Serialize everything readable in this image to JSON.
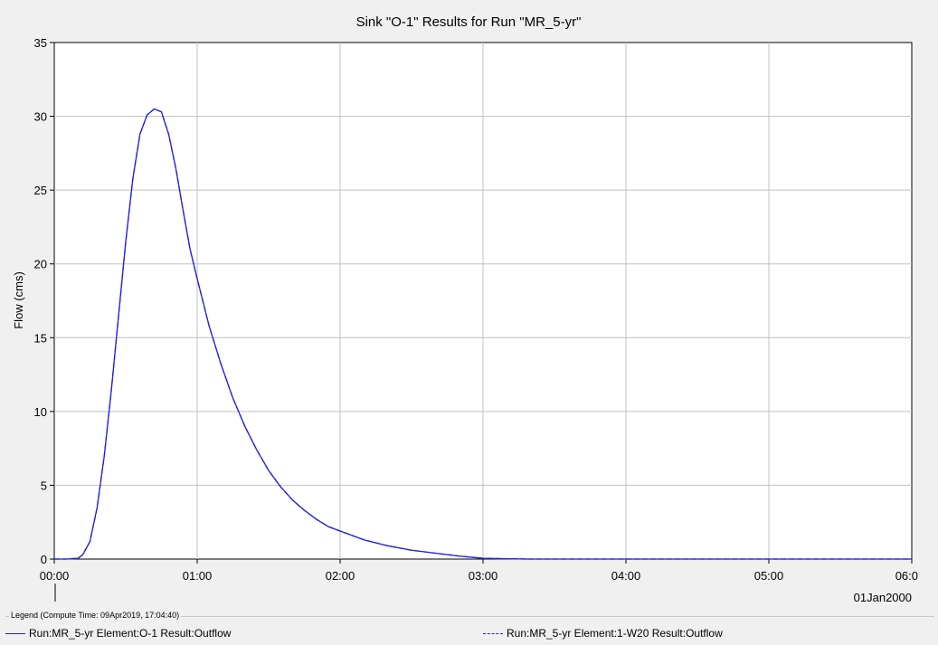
{
  "chart_data": {
    "type": "line",
    "title": "Sink \"O-1\" Results for Run \"MR_5-yr\"",
    "ylabel": "Flow (cms)",
    "xlabel": "",
    "x_date_label": "01Jan2000",
    "xlim": [
      "00:00",
      "06:00"
    ],
    "ylim": [
      0,
      35
    ],
    "x_ticks": [
      "00:00",
      "01:00",
      "02:00",
      "03:00",
      "04:00",
      "05:00",
      "06:0"
    ],
    "y_ticks": [
      "0",
      "5",
      "10",
      "15",
      "20",
      "25",
      "30",
      "35"
    ],
    "grid": true,
    "series": [
      {
        "name": "Run:MR_5-yr Element:O-1 Result:Outflow",
        "color": "#2020e0",
        "style": "solid",
        "x": [
          "00:00",
          "00:05",
          "00:10",
          "00:12",
          "00:15",
          "00:18",
          "00:21",
          "00:24",
          "00:27",
          "00:30",
          "00:33",
          "00:36",
          "00:39",
          "00:42",
          "00:45",
          "00:48",
          "00:51",
          "00:54",
          "00:57",
          "01:00",
          "01:05",
          "01:10",
          "01:15",
          "01:20",
          "01:25",
          "01:30",
          "01:35",
          "01:40",
          "01:45",
          "01:50",
          "01:55",
          "02:00",
          "02:10",
          "02:20",
          "02:30",
          "02:40",
          "02:50",
          "03:00",
          "03:10",
          "03:20",
          "04:00",
          "05:00",
          "06:00"
        ],
        "y": [
          0.0,
          0.0,
          0.05,
          0.3,
          1.2,
          3.5,
          7.0,
          11.5,
          16.5,
          21.5,
          25.8,
          28.8,
          30.1,
          30.5,
          30.3,
          28.8,
          26.5,
          23.7,
          21.0,
          19.0,
          15.8,
          13.2,
          10.9,
          9.0,
          7.4,
          6.0,
          4.9,
          4.0,
          3.3,
          2.7,
          2.2,
          1.9,
          1.3,
          0.9,
          0.6,
          0.4,
          0.2,
          0.05,
          0.02,
          0.0,
          0.0,
          0.0,
          0.0
        ]
      },
      {
        "name": "Run:MR_5-yr Element:1-W20 Result:Outflow",
        "color": "#2020e0",
        "style": "dashed",
        "x": [
          "00:00",
          "00:05",
          "00:10",
          "00:12",
          "00:15",
          "00:18",
          "00:21",
          "00:24",
          "00:27",
          "00:30",
          "00:33",
          "00:36",
          "00:39",
          "00:42",
          "00:45",
          "00:48",
          "00:51",
          "00:54",
          "00:57",
          "01:00",
          "01:05",
          "01:10",
          "01:15",
          "01:20",
          "01:25",
          "01:30",
          "01:35",
          "01:40",
          "01:45",
          "01:50",
          "01:55",
          "02:00",
          "02:10",
          "02:20",
          "02:30",
          "02:40",
          "02:50",
          "03:00",
          "03:10",
          "03:20",
          "04:00",
          "05:00",
          "06:00"
        ],
        "y": [
          0.0,
          0.0,
          0.05,
          0.3,
          1.2,
          3.5,
          7.0,
          11.5,
          16.5,
          21.5,
          25.8,
          28.8,
          30.1,
          30.5,
          30.3,
          28.8,
          26.5,
          23.7,
          21.0,
          19.0,
          15.8,
          13.2,
          10.9,
          9.0,
          7.4,
          6.0,
          4.9,
          4.0,
          3.3,
          2.7,
          2.2,
          1.9,
          1.3,
          0.9,
          0.6,
          0.4,
          0.2,
          0.05,
          0.02,
          0.0,
          0.0,
          0.0,
          0.0
        ]
      }
    ]
  },
  "legend": {
    "title": "Legend (Compute Time: 09Apr2019, 17:04:40)"
  }
}
